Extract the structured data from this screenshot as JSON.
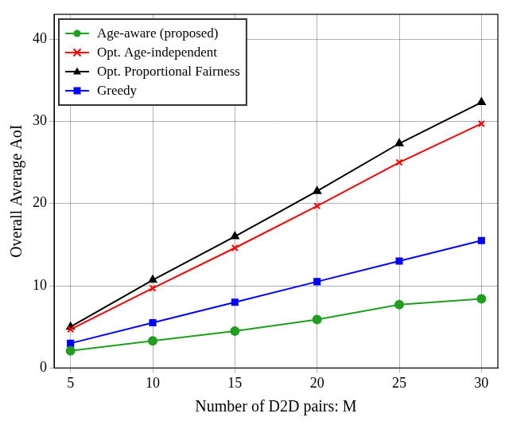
{
  "chart_data": {
    "type": "line",
    "x_label": "Number of D2D pairs: M",
    "y_label": "Overall Average AoI",
    "x": [
      5,
      10,
      15,
      20,
      25,
      30
    ],
    "series": [
      {
        "name": "Age-aware (proposed)",
        "color": "#1f9e1f",
        "marker": "circle",
        "values": [
          2.1,
          3.3,
          4.5,
          5.9,
          7.7,
          8.4
        ]
      },
      {
        "name": "Opt. Age-independent",
        "color": "#ff0000",
        "marker": "x",
        "values": [
          4.7,
          9.7,
          14.6,
          19.7,
          25.0,
          29.7
        ]
      },
      {
        "name": "Opt. Proportional Fairness",
        "color": "#000000",
        "marker": "triangle",
        "values": [
          5.0,
          10.7,
          16.0,
          21.5,
          27.3,
          32.3
        ]
      },
      {
        "name": "Greedy",
        "color": "#0000ff",
        "marker": "square",
        "values": [
          3.0,
          5.5,
          8.0,
          10.5,
          13.0,
          15.5
        ]
      }
    ],
    "xlim": [
      4,
      31
    ],
    "ylim": [
      0,
      43
    ],
    "xticks": [
      5,
      10,
      15,
      20,
      25,
      30
    ],
    "yticks": [
      0,
      10,
      20,
      30,
      40
    ],
    "grid": true,
    "legend": "upper left"
  }
}
